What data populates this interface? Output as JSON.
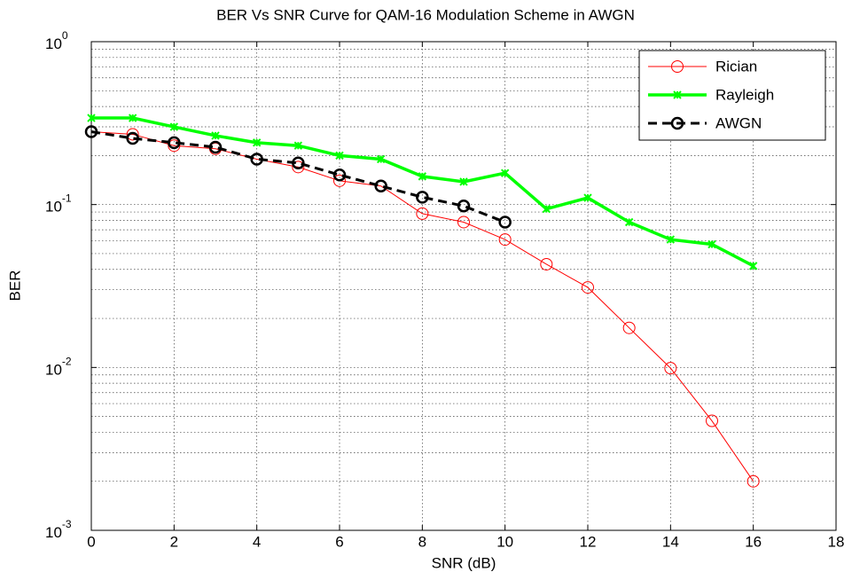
{
  "chart_data": {
    "type": "line",
    "title": "BER Vs SNR Curve for QAM-16 Modulation Scheme in AWGN",
    "xlabel": "SNR (dB)",
    "ylabel": "BER",
    "x": [
      0,
      1,
      2,
      3,
      4,
      5,
      6,
      7,
      8,
      9,
      10,
      11,
      12,
      13,
      14,
      15,
      16
    ],
    "series": [
      {
        "name": "Rician",
        "color": "#ff0000",
        "marker": "circle",
        "values": [
          0.28,
          0.27,
          0.23,
          0.22,
          0.19,
          0.17,
          0.14,
          0.13,
          0.088,
          0.078,
          0.061,
          0.043,
          0.031,
          0.0175,
          0.0099,
          0.0047,
          0.002
        ]
      },
      {
        "name": "Rayleigh",
        "color": "#00ff00",
        "marker": "x",
        "values": [
          0.34,
          0.34,
          0.3,
          0.265,
          0.24,
          0.23,
          0.2,
          0.19,
          0.149,
          0.138,
          0.156,
          0.094,
          0.11,
          0.078,
          0.061,
          0.057,
          0.042
        ]
      },
      {
        "name": "AWGN",
        "color": "#000000",
        "marker": "circle",
        "dashed": true,
        "values": [
          0.28,
          0.255,
          0.24,
          0.225,
          0.19,
          0.18,
          0.152,
          0.13,
          0.111,
          0.098,
          0.078,
          null,
          null,
          null,
          null,
          null,
          null
        ]
      }
    ],
    "xlim": [
      0,
      18
    ],
    "xticks": [
      0,
      2,
      4,
      6,
      8,
      10,
      12,
      14,
      16,
      18
    ],
    "ylim": [
      0.001,
      1
    ],
    "yticks": [
      {
        "value": 0.001,
        "label": "10",
        "exponent": "-3"
      },
      {
        "value": 0.01,
        "label": "10",
        "exponent": "-2"
      },
      {
        "value": 0.1,
        "label": "10",
        "exponent": "-1"
      },
      {
        "value": 1,
        "label": "10",
        "exponent": "0"
      }
    ],
    "log_y": true,
    "grid": true,
    "legend": "northeast"
  }
}
